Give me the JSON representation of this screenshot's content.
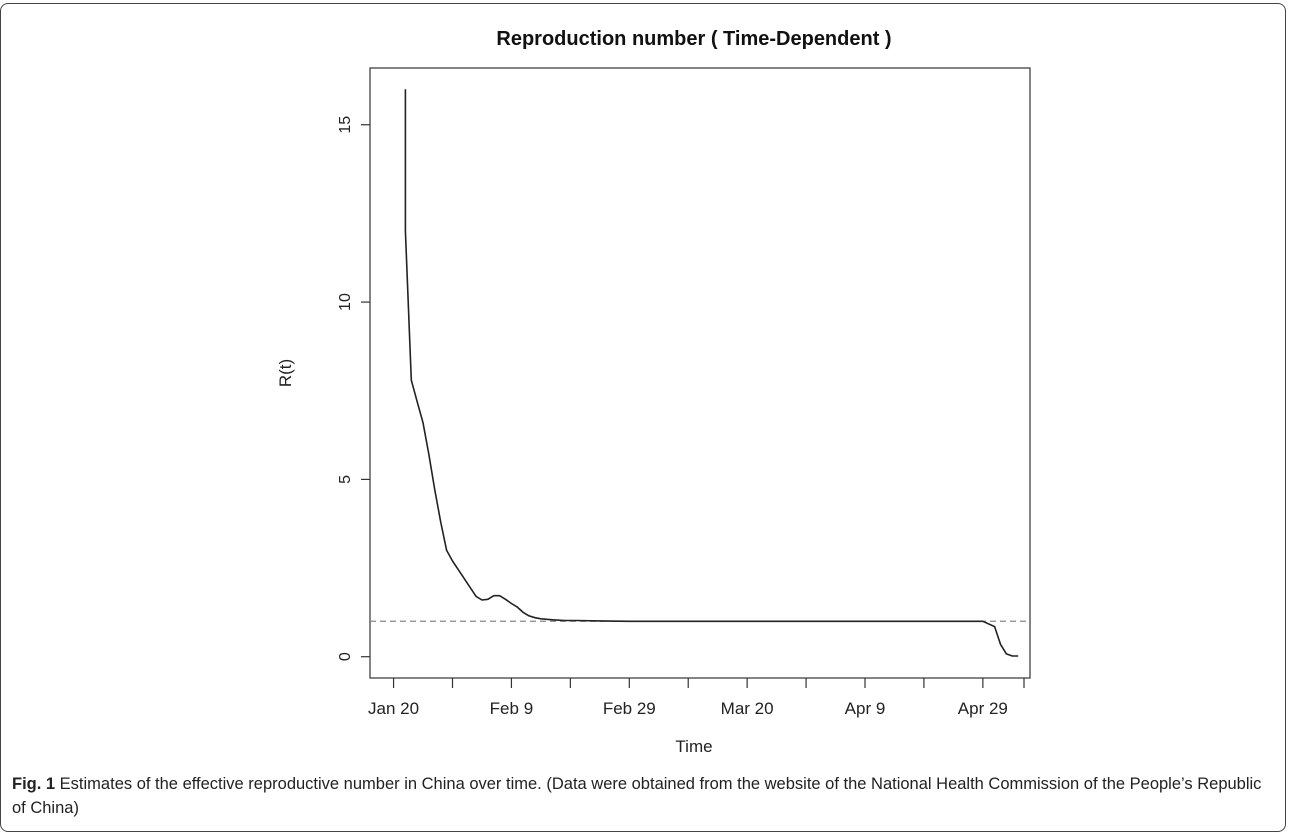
{
  "chart_data": {
    "type": "line",
    "title": "Reproduction number ( Time-Dependent )",
    "xlabel": "Time",
    "ylabel": "R(t)",
    "x_ticks": [
      "Jan 20",
      "Feb 9",
      "Feb 29",
      "Mar 20",
      "Apr 9",
      "Apr 29"
    ],
    "y_ticks": [
      "0",
      "5",
      "10",
      "15"
    ],
    "xlim": [
      "2020-01-16",
      "2020-05-07"
    ],
    "ylim": [
      -0.6,
      16.6
    ],
    "grid": false,
    "legend": "none",
    "reference_line": {
      "y": 1,
      "style": "dashed",
      "color": "#888888"
    },
    "series": [
      {
        "color": "#222222",
        "x": [
          "2020-01-22",
          "2020-01-22",
          "2020-01-23",
          "2020-01-24",
          "2020-01-25",
          "2020-01-26",
          "2020-01-27",
          "2020-01-28",
          "2020-01-29",
          "2020-01-30",
          "2020-01-31",
          "2020-02-01",
          "2020-02-02",
          "2020-02-03",
          "2020-02-04",
          "2020-02-05",
          "2020-02-06",
          "2020-02-07",
          "2020-02-08",
          "2020-02-09",
          "2020-02-10",
          "2020-02-11",
          "2020-02-12",
          "2020-02-13",
          "2020-02-14",
          "2020-02-16",
          "2020-02-18",
          "2020-02-20",
          "2020-02-24",
          "2020-02-29",
          "2020-03-05",
          "2020-03-15",
          "2020-03-25",
          "2020-04-04",
          "2020-04-09",
          "2020-04-19",
          "2020-04-29",
          "2020-05-01",
          "2020-05-02",
          "2020-05-03",
          "2020-05-04",
          "2020-05-05"
        ],
        "y": [
          16.0,
          12.0,
          7.8,
          7.2,
          6.6,
          5.7,
          4.7,
          3.8,
          3.0,
          2.7,
          2.45,
          2.2,
          1.95,
          1.7,
          1.6,
          1.62,
          1.72,
          1.72,
          1.62,
          1.5,
          1.4,
          1.25,
          1.15,
          1.1,
          1.07,
          1.04,
          1.02,
          1.02,
          1.01,
          1.0,
          1.0,
          1.0,
          1.0,
          1.0,
          1.0,
          1.0,
          1.0,
          0.85,
          0.35,
          0.08,
          0.02,
          0.02
        ]
      }
    ]
  },
  "caption": {
    "label": "Fig. 1",
    "text": " Estimates of the effective reproductive number in China over time. (Data were obtained from the website of the National Health Commission of the People’s Republic of China)"
  }
}
